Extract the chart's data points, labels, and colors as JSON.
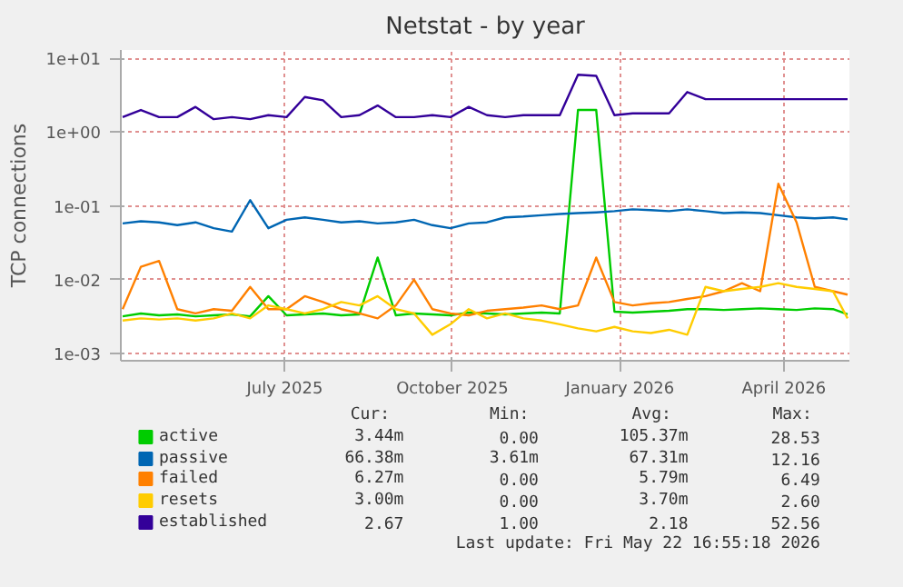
{
  "chart_data": {
    "type": "line",
    "title": "Netstat - by year",
    "ylabel": "TCP connections",
    "log": "y",
    "grid": true,
    "legend": "bottom",
    "marker": "none",
    "line_style": "solid",
    "xlim": [
      "2025-04-17",
      "2026-05-22"
    ],
    "xticks": [
      {
        "value": "2025-07-16",
        "label": "July 2025"
      },
      {
        "value": "2025-10-16",
        "label": "October 2025"
      },
      {
        "value": "2026-01-16",
        "label": "January 2026"
      },
      {
        "value": "2026-04-16",
        "label": "April 2026"
      }
    ],
    "ylim": [
      0.0008,
      13
    ],
    "yticks": [
      {
        "value": 0.001,
        "label": "1e-03"
      },
      {
        "value": 0.01,
        "label": "1e-02"
      },
      {
        "value": 0.1,
        "label": "1e-01"
      },
      {
        "value": 1,
        "label": "1e+00"
      },
      {
        "value": 10,
        "label": "1e+01"
      }
    ],
    "x": [
      "2025-04-18",
      "2025-04-28",
      "2025-05-08",
      "2025-05-18",
      "2025-05-28",
      "2025-06-07",
      "2025-06-17",
      "2025-06-27",
      "2025-07-07",
      "2025-07-17",
      "2025-07-27",
      "2025-08-06",
      "2025-08-16",
      "2025-08-26",
      "2025-09-05",
      "2025-09-15",
      "2025-09-25",
      "2025-10-05",
      "2025-10-15",
      "2025-10-25",
      "2025-11-04",
      "2025-11-14",
      "2025-11-24",
      "2025-12-04",
      "2025-12-14",
      "2025-12-24",
      "2026-01-03",
      "2026-01-13",
      "2026-01-23",
      "2026-02-02",
      "2026-02-12",
      "2026-02-22",
      "2026-03-04",
      "2026-03-14",
      "2026-03-24",
      "2026-04-03",
      "2026-04-13",
      "2026-04-23",
      "2026-05-03",
      "2026-05-13",
      "2026-05-21"
    ],
    "series": [
      {
        "name": "active",
        "color": "#00cc00",
        "values": [
          0.0032,
          0.0035,
          0.0033,
          0.0034,
          0.0032,
          0.0033,
          0.0034,
          0.0032,
          0.006,
          0.0033,
          0.0034,
          0.0035,
          0.0033,
          0.0034,
          0.02,
          0.0033,
          0.0035,
          0.0034,
          0.0033,
          0.0036,
          0.0035,
          0.0034,
          0.0035,
          0.0036,
          0.0035,
          2.0,
          2.0,
          0.0037,
          0.0036,
          0.0037,
          0.0038,
          0.004,
          0.004,
          0.0039,
          0.004,
          0.0041,
          0.004,
          0.0039,
          0.0041,
          0.004,
          0.0034
        ]
      },
      {
        "name": "passive",
        "color": "#0066b3",
        "values": [
          0.058,
          0.062,
          0.06,
          0.055,
          0.06,
          0.05,
          0.045,
          0.12,
          0.05,
          0.065,
          0.07,
          0.065,
          0.06,
          0.062,
          0.058,
          0.06,
          0.065,
          0.055,
          0.05,
          0.058,
          0.06,
          0.07,
          0.072,
          0.075,
          0.078,
          0.08,
          0.082,
          0.085,
          0.09,
          0.088,
          0.085,
          0.09,
          0.085,
          0.08,
          0.082,
          0.08,
          0.075,
          0.07,
          0.068,
          0.07,
          0.066
        ]
      },
      {
        "name": "failed",
        "color": "#ff8000",
        "values": [
          0.004,
          0.015,
          0.018,
          0.004,
          0.0035,
          0.004,
          0.0038,
          0.008,
          0.004,
          0.004,
          0.006,
          0.005,
          0.004,
          0.0035,
          0.003,
          0.0045,
          0.01,
          0.004,
          0.0035,
          0.0033,
          0.0038,
          0.004,
          0.0042,
          0.0045,
          0.004,
          0.0045,
          0.02,
          0.005,
          0.0045,
          0.0048,
          0.005,
          0.0055,
          0.006,
          0.007,
          0.009,
          0.007,
          0.2,
          0.06,
          0.008,
          0.007,
          0.0063
        ]
      },
      {
        "name": "resets",
        "color": "#ffcc00",
        "values": [
          0.0028,
          0.003,
          0.0029,
          0.003,
          0.0028,
          0.003,
          0.0035,
          0.003,
          0.0045,
          0.004,
          0.0035,
          0.004,
          0.005,
          0.0045,
          0.006,
          0.004,
          0.0035,
          0.0018,
          0.0025,
          0.004,
          0.003,
          0.0035,
          0.003,
          0.0028,
          0.0025,
          0.0022,
          0.002,
          0.0023,
          0.002,
          0.0019,
          0.0021,
          0.0018,
          0.008,
          0.007,
          0.0075,
          0.008,
          0.009,
          0.008,
          0.0075,
          0.007,
          0.003
        ]
      },
      {
        "name": "established",
        "color": "#330099",
        "values": [
          1.6,
          2.0,
          1.6,
          1.6,
          2.2,
          1.5,
          1.6,
          1.5,
          1.7,
          1.6,
          3.0,
          2.7,
          1.6,
          1.7,
          2.3,
          1.6,
          1.6,
          1.7,
          1.6,
          2.2,
          1.7,
          1.6,
          1.7,
          1.7,
          1.7,
          6.0,
          5.8,
          1.7,
          1.8,
          1.8,
          1.8,
          3.5,
          2.8,
          2.8,
          2.8,
          2.8,
          2.8,
          2.8,
          2.8,
          2.8,
          2.8
        ]
      }
    ],
    "annotations": [
      "Cur:",
      "Min:",
      "Avg:",
      "Max:",
      "3.44m",
      "0.00",
      "105.37m",
      "28.53",
      "66.38m",
      "3.61m",
      "67.31m",
      "12.16",
      "6.27m",
      "0.00",
      "5.79m",
      "6.49",
      "3.00m",
      "0.00",
      "3.70m",
      "2.60",
      "2.67",
      "1.00",
      "2.18",
      "52.56",
      "Last update: Fri May 22 16:55:18 2026"
    ]
  }
}
